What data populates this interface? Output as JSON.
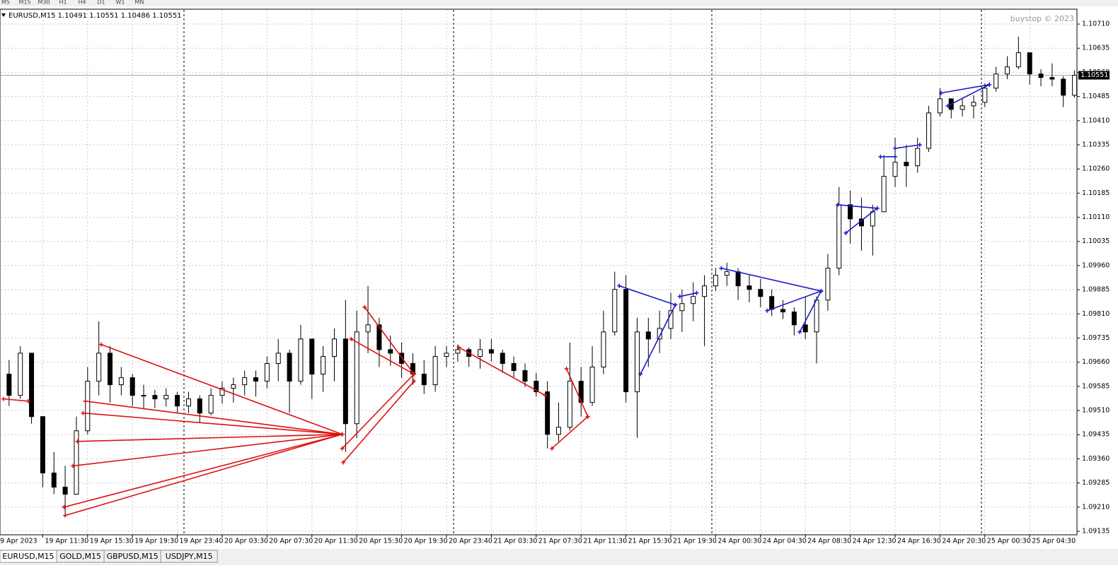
{
  "toolbar": [
    "M5",
    "M15",
    "M30",
    "H1",
    "H4",
    "D1",
    "W1",
    "MN"
  ],
  "tabs": [
    "EURUSD,M15",
    "GOLD,M15",
    "GBPUSD,M15",
    "USDJPY,M15"
  ],
  "chart_data": {
    "type": "candlestick",
    "title": "EURUSD,M15  1.10491 1.10551 1.10486 1.10551",
    "watermark": "buystop © 2023",
    "ylim": [
      1.09124,
      1.10754
    ],
    "yticks": [
      {
        "value": 1.09135,
        "label": "1.09135"
      },
      {
        "value": 1.0921,
        "label": "1.09210"
      },
      {
        "value": 1.09285,
        "label": "1.09285"
      },
      {
        "value": 1.0936,
        "label": "1.09360"
      },
      {
        "value": 1.09435,
        "label": "1.09435"
      },
      {
        "value": 1.0951,
        "label": "1.09510"
      },
      {
        "value": 1.09585,
        "label": "1.09585"
      },
      {
        "value": 1.0966,
        "label": "1.09660"
      },
      {
        "value": 1.09735,
        "label": "1.09735"
      },
      {
        "value": 1.0981,
        "label": "1.09810"
      },
      {
        "value": 1.09885,
        "label": "1.09885"
      },
      {
        "value": 1.0996,
        "label": "1.09960"
      },
      {
        "value": 1.10035,
        "label": "1.10035"
      },
      {
        "value": 1.1011,
        "label": "1.10110"
      },
      {
        "value": 1.10185,
        "label": "1.10185"
      },
      {
        "value": 1.1026,
        "label": "1.10260"
      },
      {
        "value": 1.10335,
        "label": "1.10335"
      },
      {
        "value": 1.1041,
        "label": "1.10410"
      },
      {
        "value": 1.10485,
        "label": "1.10485"
      },
      {
        "value": 1.1056,
        "label": "1.10560"
      },
      {
        "value": 1.10635,
        "label": "1.10635"
      },
      {
        "value": 1.1071,
        "label": "1.10710"
      }
    ],
    "current_price": {
      "value": 1.10551,
      "label": "1.10551"
    },
    "grid": true,
    "x_labels": [
      "9 Apr 2023",
      "19 Apr 11:30",
      "19 Apr 15:30",
      "19 Apr 19:30",
      "19 Apr 23:40",
      "20 Apr 03:30",
      "20 Apr 07:30",
      "20 Apr 11:30",
      "20 Apr 15:30",
      "20 Apr 19:30",
      "20 Apr 23:40",
      "21 Apr 03:30",
      "21 Apr 07:30",
      "21 Apr 11:30",
      "21 Apr 15:30",
      "21 Apr 19:30",
      "24 Apr 00:30",
      "24 Apr 04:30",
      "24 Apr 08:30",
      "24 Apr 12:30",
      "24 Apr 16:30",
      "24 Apr 20:30",
      "25 Apr 00:30",
      "25 Apr 04:30"
    ],
    "open": [
      1.0959,
      1.09623,
      1.09557,
      1.09688,
      1.09491,
      1.09316,
      1.09272,
      1.0925,
      1.09447,
      1.09601,
      1.09688,
      1.0959,
      1.09612,
      1.09557,
      1.09557,
      1.09546,
      1.09557,
      1.09524,
      1.09546,
      1.09502,
      1.09557,
      1.09579,
      1.0959,
      1.09612,
      1.09601,
      1.09656,
      1.09688,
      1.09601,
      1.09732,
      1.09623,
      1.09678,
      1.09732,
      1.09469,
      1.09754,
      1.09776,
      1.09699,
      1.09688,
      1.09656,
      1.09623,
      1.0959,
      1.09678,
      1.09688,
      1.09699,
      1.09678,
      1.09699,
      1.09688,
      1.09656,
      1.09634,
      1.09601,
      1.09568,
      1.09436,
      1.09458,
      1.09601,
      1.09535,
      1.09645,
      1.09754,
      1.09886,
      1.09568,
      1.09754,
      1.09732,
      1.09765,
      1.0982,
      1.09842,
      1.09864,
      1.09897,
      1.0993,
      1.09941,
      1.09897,
      1.09886,
      1.09864,
      1.09824,
      1.09816,
      1.09776,
      1.09754,
      1.09853,
      1.09952,
      1.10149,
      1.10105,
      1.10083,
      1.10127,
      1.10237,
      1.10281,
      1.1027,
      1.10324,
      1.10434,
      1.10478,
      1.10445,
      1.10456,
      1.10467,
      1.10511,
      1.10555,
      1.10577,
      1.10621,
      1.10555,
      1.10544,
      1.10539,
      1.10489
    ],
    "high": [
      1.09645,
      1.09667,
      1.0971,
      1.09688,
      1.09491,
      1.09381,
      1.09338,
      1.09491,
      1.09645,
      1.09787,
      1.0971,
      1.09645,
      1.09623,
      1.0959,
      1.09574,
      1.09579,
      1.09568,
      1.09568,
      1.09557,
      1.09579,
      1.09601,
      1.09612,
      1.09634,
      1.09634,
      1.09678,
      1.09732,
      1.09699,
      1.09776,
      1.09732,
      1.0971,
      1.09765,
      1.09853,
      1.0982,
      1.09897,
      1.09798,
      1.09743,
      1.09721,
      1.09688,
      1.09667,
      1.0971,
      1.0971,
      1.09715,
      1.09706,
      1.09732,
      1.09732,
      1.09699,
      1.09678,
      1.09656,
      1.09627,
      1.09601,
      1.09535,
      1.09721,
      1.09645,
      1.0971,
      1.0982,
      1.09941,
      1.0993,
      1.09798,
      1.09798,
      1.0982,
      1.09875,
      1.09886,
      1.09908,
      1.0993,
      1.09952,
      1.09969,
      1.09952,
      1.0993,
      1.09919,
      1.09886,
      1.09853,
      1.09831,
      1.09864,
      1.09864,
      1.09996,
      1.10204,
      1.10193,
      1.10171,
      1.10149,
      1.10303,
      1.10357,
      1.10335,
      1.10357,
      1.10456,
      1.10511,
      1.10478,
      1.10478,
      1.10489,
      1.10526,
      1.10577,
      1.1061,
      1.10671,
      1.10621,
      1.1057,
      1.10588,
      1.10548,
      1.10566
    ],
    "low": [
      1.09557,
      1.09524,
      1.09546,
      1.09469,
      1.09272,
      1.0925,
      1.09184,
      1.0925,
      1.09436,
      1.09557,
      1.09535,
      1.09557,
      1.09524,
      1.09517,
      1.09517,
      1.09522,
      1.09502,
      1.09502,
      1.09474,
      1.09495,
      1.09531,
      1.09535,
      1.09557,
      1.09553,
      1.09579,
      1.09601,
      1.09502,
      1.0959,
      1.09546,
      1.09568,
      1.09601,
      1.09381,
      1.09425,
      1.09688,
      1.09645,
      1.09649,
      1.09612,
      1.0959,
      1.09561,
      1.09568,
      1.09645,
      1.09662,
      1.09645,
      1.0964,
      1.09662,
      1.09627,
      1.09612,
      1.09583,
      1.09553,
      1.09392,
      1.09414,
      1.09447,
      1.09491,
      1.09524,
      1.09623,
      1.09743,
      1.09535,
      1.09425,
      1.09645,
      1.09688,
      1.09732,
      1.09754,
      1.09787,
      1.0971,
      1.09881,
      1.09897,
      1.09853,
      1.09846,
      1.09831,
      1.09803,
      1.09794,
      1.09743,
      1.09732,
      1.09656,
      1.0982,
      1.0993,
      1.10028,
      1.10006,
      1.09991,
      1.10127,
      1.10204,
      1.10204,
      1.10248,
      1.10313,
      1.10423,
      1.10417,
      1.10423,
      1.10417,
      1.10452,
      1.105,
      1.10539,
      1.1057,
      1.10522,
      1.10517,
      1.10517,
      1.10452,
      1.10482
    ],
    "close": [
      1.09623,
      1.09557,
      1.09688,
      1.09491,
      1.09316,
      1.09272,
      1.0925,
      1.09447,
      1.09601,
      1.09688,
      1.0959,
      1.09612,
      1.09557,
      1.09557,
      1.09546,
      1.09557,
      1.09524,
      1.09546,
      1.09502,
      1.09557,
      1.09579,
      1.0959,
      1.09612,
      1.09601,
      1.09656,
      1.09688,
      1.09601,
      1.09732,
      1.09623,
      1.09678,
      1.09732,
      1.09469,
      1.09754,
      1.09776,
      1.09699,
      1.09688,
      1.09656,
      1.09623,
      1.0959,
      1.09678,
      1.09688,
      1.09699,
      1.09678,
      1.09699,
      1.09688,
      1.09656,
      1.09634,
      1.09601,
      1.09568,
      1.09436,
      1.09458,
      1.09601,
      1.09535,
      1.09645,
      1.09754,
      1.09886,
      1.09568,
      1.09754,
      1.09732,
      1.09765,
      1.0982,
      1.09842,
      1.09864,
      1.09897,
      1.0993,
      1.09941,
      1.09897,
      1.09886,
      1.09864,
      1.09824,
      1.09816,
      1.09776,
      1.09754,
      1.09853,
      1.09952,
      1.10149,
      1.10105,
      1.10083,
      1.10127,
      1.10237,
      1.10281,
      1.1027,
      1.10324,
      1.10434,
      1.10478,
      1.10445,
      1.10456,
      1.10467,
      1.10511,
      1.10555,
      1.10577,
      1.10621,
      1.10555,
      1.10544,
      1.10539,
      1.10489,
      1.10551
    ],
    "overlays": [
      {
        "color": "#dd1111",
        "segments": [
          [
            9.2,
            1.09715,
            30.7,
            1.09436
          ],
          [
            7.8,
            1.09539,
            30.7,
            1.09436
          ],
          [
            7.6,
            1.09502,
            30.7,
            1.09436
          ],
          [
            7.1,
            1.09414,
            30.7,
            1.09436
          ],
          [
            6.7,
            1.09338,
            30.7,
            1.09436
          ],
          [
            5.9,
            1.0921,
            30.7,
            1.09436
          ],
          [
            6.0,
            1.09184,
            30.7,
            1.09436
          ],
          [
            30.7,
            1.09392,
            37.1,
            1.09623
          ],
          [
            30.8,
            1.09349,
            37.1,
            1.09601
          ],
          [
            32.7,
            1.09831,
            37.1,
            1.09623
          ],
          [
            31.5,
            1.09732,
            37.1,
            1.09623
          ],
          [
            41.1,
            1.09706,
            48.8,
            1.09557
          ],
          [
            49.4,
            1.09392,
            52.6,
            1.09491
          ],
          [
            50.7,
            1.0964,
            52.6,
            1.09491
          ],
          [
            0.5,
            1.09546,
            2.7,
            1.09539
          ]
        ]
      },
      {
        "color": "#1a1acc",
        "segments": [
          [
            55.4,
            1.09897,
            60.4,
            1.09838
          ],
          [
            57.3,
            1.09623,
            60.4,
            1.09838
          ],
          [
            60.8,
            1.09864,
            62.3,
            1.09875
          ],
          [
            64.5,
            1.09952,
            73.4,
            1.09881
          ],
          [
            68.6,
            1.0982,
            73.4,
            1.09881
          ],
          [
            71.5,
            1.09754,
            73.4,
            1.09881
          ],
          [
            74.9,
            1.10149,
            78.4,
            1.10138
          ],
          [
            75.6,
            1.10061,
            78.4,
            1.10138
          ],
          [
            78.7,
            1.10298,
            80.0,
            1.10298
          ],
          [
            80.0,
            1.10324,
            82.2,
            1.10335
          ],
          [
            84.1,
            1.10496,
            88.4,
            1.10522
          ],
          [
            84.7,
            1.10456,
            88.4,
            1.10522
          ]
        ]
      }
    ]
  }
}
